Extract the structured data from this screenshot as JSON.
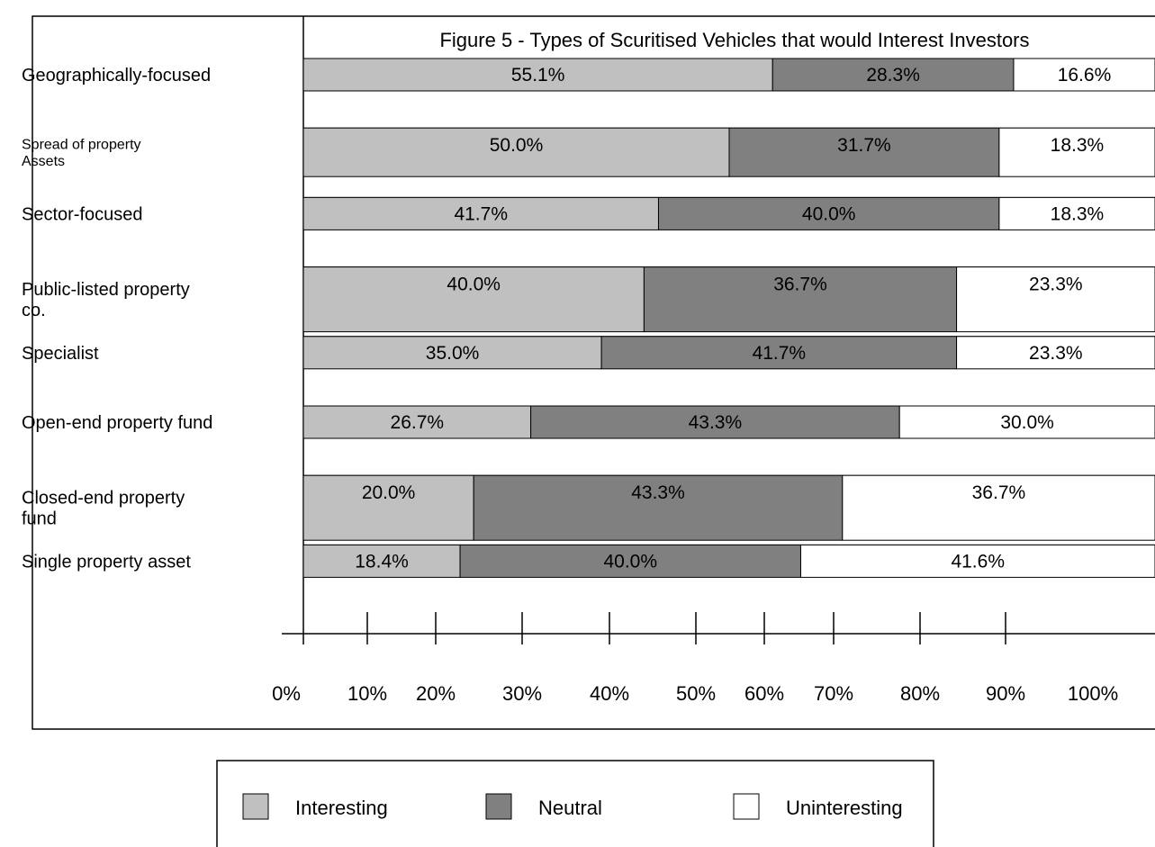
{
  "chart_data": {
    "type": "bar",
    "orientation": "horizontal",
    "stacked": true,
    "title": "Figure 5  - Types of Scuritised Vehicles that would Interest Investors",
    "categories": [
      "Geographically-focused",
      "Spread of property Assets",
      "Sector-focused",
      "Public-listed property co.",
      "Specialist",
      "Open-end property fund",
      "Closed-end property fund",
      "Single property asset"
    ],
    "series": [
      {
        "name": "Interesting",
        "color": "#c0c0c0",
        "values": [
          55.1,
          50.0,
          41.7,
          40.0,
          35.0,
          26.7,
          20.0,
          18.4
        ],
        "labels": [
          "55.1%",
          "50.0%",
          "41.7%",
          "40.0%",
          "35.0%",
          "26.7%",
          "20.0%",
          "18.4%"
        ]
      },
      {
        "name": "Neutral",
        "color": "#808080",
        "values": [
          28.3,
          31.7,
          40.0,
          36.7,
          41.7,
          43.3,
          43.3,
          40.0
        ],
        "labels": [
          "28.3%",
          "31.7%",
          "40.0%",
          "36.7%",
          "41.7%",
          "43.3%",
          "43.3%",
          "40.0%"
        ]
      },
      {
        "name": "Uninteresting",
        "color": "#ffffff",
        "values": [
          16.6,
          18.3,
          18.3,
          23.3,
          23.3,
          30.0,
          36.7,
          41.6
        ],
        "labels": [
          "16.6%",
          "18.3%",
          "18.3%",
          "23.3%",
          "23.3%",
          "30.0%",
          "36.7%",
          "41.6%"
        ]
      }
    ],
    "xlim": [
      0,
      100
    ],
    "x_tick_labels": [
      "0%",
      "10%",
      "20%",
      "30%",
      "40%",
      "50%",
      "60%",
      "70%",
      "80%",
      "90%",
      "100%"
    ],
    "grid": false,
    "legend_position": "bottom"
  }
}
